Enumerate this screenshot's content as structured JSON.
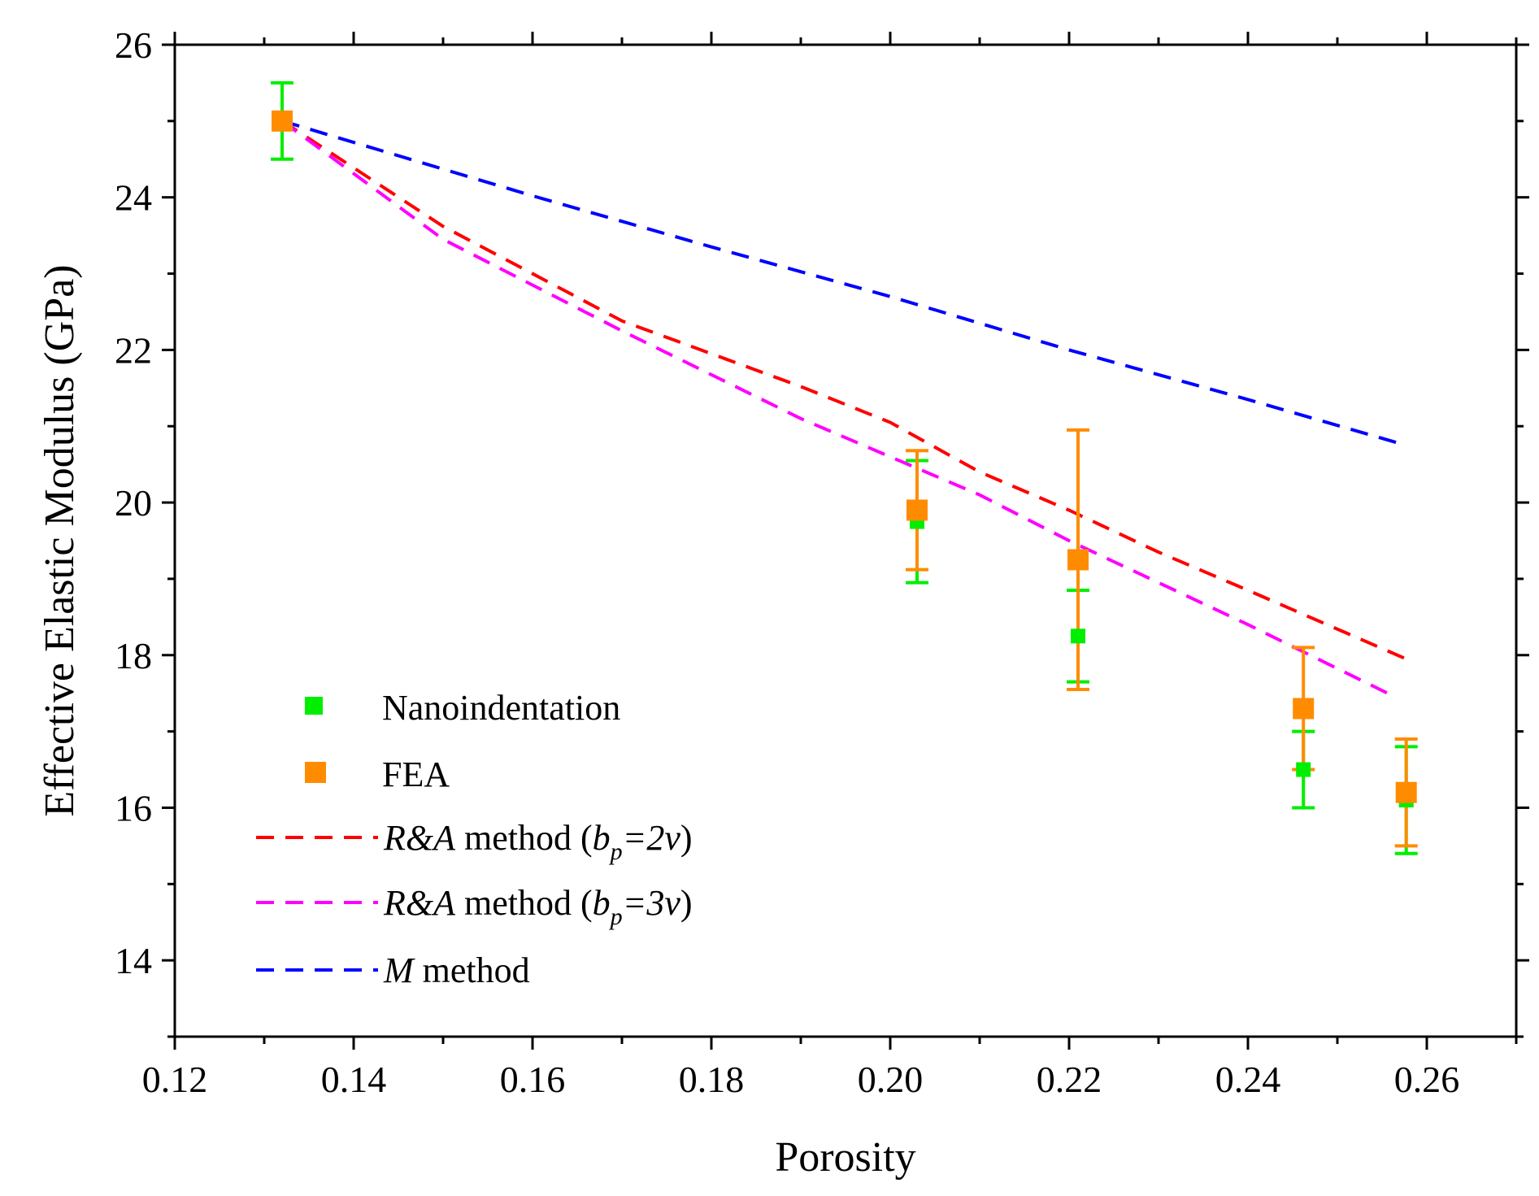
{
  "chart_data": {
    "type": "scatter",
    "title": "",
    "xlabel": "Porosity",
    "ylabel": "Effective Elastic Modulus (GPa)",
    "xlim": [
      0.12,
      0.27
    ],
    "ylim": [
      13,
      26
    ],
    "x_ticks": [
      "0.12",
      "0.14",
      "0.16",
      "0.18",
      "0.20",
      "0.22",
      "0.24",
      "0.26"
    ],
    "y_ticks": [
      "14",
      "16",
      "18",
      "20",
      "22",
      "24",
      "26"
    ],
    "legend_position": "bottom-left",
    "series": [
      {
        "name": "Nanoindentation",
        "kind": "points",
        "color": "#00ee00",
        "points": [
          {
            "x": 0.132,
            "y": 25.0,
            "err": 0.5
          },
          {
            "x": 0.203,
            "y": 19.75,
            "err": 0.8
          },
          {
            "x": 0.221,
            "y": 18.25,
            "err": 0.6
          },
          {
            "x": 0.2462,
            "y": 16.5,
            "err": 0.5
          },
          {
            "x": 0.2577,
            "y": 16.1,
            "err": 0.7
          }
        ]
      },
      {
        "name": "FEA",
        "kind": "points",
        "color": "#ff8c00",
        "points": [
          {
            "x": 0.132,
            "y": 25.0,
            "err": 0.0
          },
          {
            "x": 0.203,
            "y": 19.9,
            "err": 0.78
          },
          {
            "x": 0.221,
            "y": 19.25,
            "err": 1.7
          },
          {
            "x": 0.2462,
            "y": 17.3,
            "err": 0.8
          },
          {
            "x": 0.2577,
            "y": 16.2,
            "err": 0.7
          }
        ]
      },
      {
        "name": "R&A method (bp=2v)",
        "kind": "line",
        "color": "#ff0000",
        "points": [
          {
            "x": 0.132,
            "y": 25.0
          },
          {
            "x": 0.15,
            "y": 23.62
          },
          {
            "x": 0.17,
            "y": 22.38
          },
          {
            "x": 0.19,
            "y": 21.52
          },
          {
            "x": 0.2,
            "y": 21.05
          },
          {
            "x": 0.21,
            "y": 20.4
          },
          {
            "x": 0.22,
            "y": 19.9
          },
          {
            "x": 0.23,
            "y": 19.35
          },
          {
            "x": 0.24,
            "y": 18.85
          },
          {
            "x": 0.2577,
            "y": 17.95
          }
        ]
      },
      {
        "name": "R&A method (bp=3v)",
        "kind": "line",
        "color": "#ff00ff",
        "points": [
          {
            "x": 0.132,
            "y": 25.0
          },
          {
            "x": 0.15,
            "y": 23.45
          },
          {
            "x": 0.17,
            "y": 22.25
          },
          {
            "x": 0.19,
            "y": 21.1
          },
          {
            "x": 0.2,
            "y": 20.6
          },
          {
            "x": 0.21,
            "y": 20.1
          },
          {
            "x": 0.22,
            "y": 19.5
          },
          {
            "x": 0.23,
            "y": 18.95
          },
          {
            "x": 0.24,
            "y": 18.4
          },
          {
            "x": 0.2565,
            "y": 17.45
          }
        ]
      },
      {
        "name": "M method",
        "kind": "line",
        "color": "#0000ff",
        "points": [
          {
            "x": 0.132,
            "y": 25.0
          },
          {
            "x": 0.16,
            "y": 24.02
          },
          {
            "x": 0.18,
            "y": 23.35
          },
          {
            "x": 0.2,
            "y": 22.7
          },
          {
            "x": 0.22,
            "y": 22.0
          },
          {
            "x": 0.24,
            "y": 21.35
          },
          {
            "x": 0.2577,
            "y": 20.75
          }
        ]
      }
    ],
    "legend": [
      {
        "label_plain": "Nanoindentation",
        "symbol": "square",
        "color": "#00ee00"
      },
      {
        "label_plain": "FEA",
        "symbol": "square",
        "color": "#ff8c00"
      },
      {
        "label_main": "R&A",
        "label_mid": " method (",
        "label_b": "b",
        "label_sub": "p",
        "label_eq": "=2",
        "label_v": "v",
        "label_end": ")",
        "symbol": "dash",
        "color": "#ff0000"
      },
      {
        "label_main": "R&A",
        "label_mid": " method (",
        "label_b": "b",
        "label_sub": "p",
        "label_eq": "=3",
        "label_v": "v",
        "label_end": ")",
        "symbol": "dash",
        "color": "#ff00ff"
      },
      {
        "label_main": "M",
        "label_mid": " method",
        "symbol": "dash",
        "color": "#0000ff"
      }
    ]
  }
}
